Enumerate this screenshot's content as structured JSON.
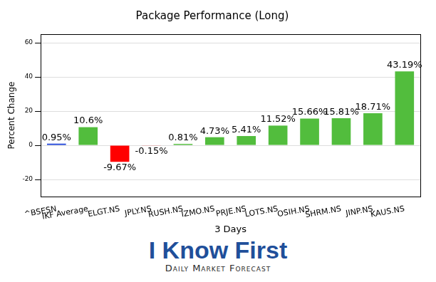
{
  "chart_data": {
    "type": "bar",
    "title": "Package Performance (Long)",
    "x_label": "3 Days",
    "y_label": "Percent Change",
    "categories": [
      "^BSESN",
      "IKF Average",
      "ELGT.NS",
      "JPLY.NS",
      "RUSH.NS",
      "IZMO.NS",
      "PRJE.NS",
      "LOTS.NS",
      "OSIH.NS",
      "SHRM.NS",
      "JINP.NS",
      "KAUS.NS"
    ],
    "values": [
      0.95,
      10.6,
      -9.67,
      -0.15,
      0.81,
      4.73,
      5.41,
      11.52,
      15.66,
      15.81,
      18.71,
      43.19
    ],
    "value_labels": [
      "0.95%",
      "10.6%",
      "-9.67%",
      "-0.15%",
      "0.81%",
      "4.73%",
      "5.41%",
      "11.52%",
      "15.66%",
      "15.81%",
      "18.71%",
      "43.19%"
    ],
    "colors": [
      "#1a3fd6",
      "#52bd3d",
      "#ff0000",
      "#ff0000",
      "#52bd3d",
      "#52bd3d",
      "#52bd3d",
      "#52bd3d",
      "#52bd3d",
      "#52bd3d",
      "#52bd3d",
      "#52bd3d"
    ],
    "ylim": [
      -30,
      65
    ],
    "yticks": [
      -20,
      0,
      20,
      40,
      60
    ],
    "grid": true,
    "data_labels": true,
    "annotations": [
      "I Know First",
      "Daily Market Forecast"
    ]
  }
}
